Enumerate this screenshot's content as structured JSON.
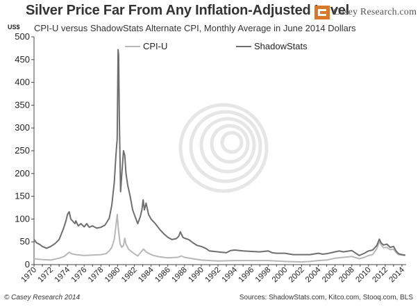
{
  "header": {
    "title": "Silver Price Far From Any Inflation-Adjusted Level",
    "subtitle": "CPI-U versus ShadowStats Alternate CPI, Monthly Average in June 2014 Dollars",
    "unit_label": "US$",
    "logo_text": "Casey Research.com"
  },
  "footer": {
    "copyright": "© Casey Research 2014",
    "sources": "Sources: ShadowStats.com, Kitco.com, Stooq.com, BLS"
  },
  "colors": {
    "cpi_u": "#b7b7b7",
    "shadowstats": "#6e6e6e",
    "axis": "#444444",
    "grid": "#dcdcdc",
    "logo_orange": "#d9772a"
  },
  "chart_data": {
    "type": "line",
    "title": "Silver Price Far From Any Inflation-Adjusted Level",
    "subtitle": "CPI-U versus ShadowStats Alternate CPI, Monthly Average in June 2014 Dollars",
    "ylabel": "US$",
    "xlabel": "",
    "xlim": [
      1970,
      2014.5
    ],
    "ylim": [
      0,
      500
    ],
    "yticks": [
      0,
      50,
      100,
      150,
      200,
      250,
      300,
      350,
      400,
      450,
      500
    ],
    "xticks": [
      "1970",
      "1972",
      "1974",
      "1976",
      "1978",
      "1980",
      "1982",
      "1984",
      "1986",
      "1988",
      "1990",
      "1992",
      "1994",
      "1996",
      "1998",
      "2000",
      "2002",
      "2004",
      "2006",
      "2008",
      "2010",
      "2012",
      "2014"
    ],
    "grid": false,
    "legend": "top-center",
    "series": [
      {
        "name": "CPI-U",
        "points": [
          [
            1970.0,
            13
          ],
          [
            1971.0,
            11
          ],
          [
            1972.0,
            10
          ],
          [
            1973.0,
            14
          ],
          [
            1973.6,
            18
          ],
          [
            1974.0,
            24
          ],
          [
            1974.2,
            27
          ],
          [
            1974.5,
            24
          ],
          [
            1975.0,
            22
          ],
          [
            1975.5,
            21
          ],
          [
            1976.0,
            20
          ],
          [
            1977.0,
            21
          ],
          [
            1978.0,
            22
          ],
          [
            1978.6,
            24
          ],
          [
            1979.0,
            30
          ],
          [
            1979.3,
            38
          ],
          [
            1979.6,
            55
          ],
          [
            1979.8,
            85
          ],
          [
            1979.95,
            110
          ],
          [
            1980.1,
            75
          ],
          [
            1980.3,
            45
          ],
          [
            1980.5,
            38
          ],
          [
            1980.7,
            42
          ],
          [
            1980.85,
            58
          ],
          [
            1981.0,
            45
          ],
          [
            1981.3,
            34
          ],
          [
            1981.7,
            28
          ],
          [
            1982.0,
            24
          ],
          [
            1982.4,
            19
          ],
          [
            1982.8,
            28
          ],
          [
            1983.1,
            34
          ],
          [
            1983.4,
            28
          ],
          [
            1983.8,
            24
          ],
          [
            1984.3,
            20
          ],
          [
            1985.0,
            17
          ],
          [
            1986.0,
            15
          ],
          [
            1987.2,
            16
          ],
          [
            1987.6,
            19
          ],
          [
            1988.0,
            16
          ],
          [
            1989.0,
            13
          ],
          [
            1990.0,
            10
          ],
          [
            1992.0,
            8
          ],
          [
            1994.0,
            9
          ],
          [
            1996.0,
            9
          ],
          [
            1998.0,
            9
          ],
          [
            1999.0,
            8
          ],
          [
            2000.0,
            7
          ],
          [
            2002.0,
            6
          ],
          [
            2003.0,
            7
          ],
          [
            2004.0,
            9
          ],
          [
            2005.0,
            10
          ],
          [
            2006.0,
            14
          ],
          [
            2007.0,
            16
          ],
          [
            2008.0,
            18
          ],
          [
            2008.9,
            13
          ],
          [
            2009.5,
            16
          ],
          [
            2010.0,
            20
          ],
          [
            2010.5,
            22
          ],
          [
            2011.0,
            35
          ],
          [
            2011.3,
            50
          ],
          [
            2011.5,
            44
          ],
          [
            2011.8,
            37
          ],
          [
            2012.2,
            38
          ],
          [
            2012.6,
            33
          ],
          [
            2013.0,
            34
          ],
          [
            2013.3,
            27
          ],
          [
            2013.6,
            22
          ],
          [
            2014.0,
            21
          ],
          [
            2014.4,
            20
          ]
        ]
      },
      {
        "name": "ShadowStats",
        "points": [
          [
            1970.0,
            55
          ],
          [
            1970.3,
            48
          ],
          [
            1970.7,
            44
          ],
          [
            1971.0,
            40
          ],
          [
            1971.5,
            36
          ],
          [
            1972.0,
            40
          ],
          [
            1972.5,
            46
          ],
          [
            1973.0,
            55
          ],
          [
            1973.5,
            78
          ],
          [
            1973.8,
            95
          ],
          [
            1974.0,
            110
          ],
          [
            1974.2,
            116
          ],
          [
            1974.4,
            100
          ],
          [
            1974.6,
            96
          ],
          [
            1974.9,
            90
          ],
          [
            1975.0,
            96
          ],
          [
            1975.3,
            85
          ],
          [
            1975.6,
            90
          ],
          [
            1976.0,
            83
          ],
          [
            1976.3,
            90
          ],
          [
            1976.6,
            82
          ],
          [
            1977.0,
            85
          ],
          [
            1977.5,
            80
          ],
          [
            1978.0,
            82
          ],
          [
            1978.5,
            87
          ],
          [
            1979.0,
            102
          ],
          [
            1979.3,
            130
          ],
          [
            1979.6,
            180
          ],
          [
            1979.8,
            240
          ],
          [
            1979.95,
            275
          ],
          [
            1980.05,
            472
          ],
          [
            1980.12,
            460
          ],
          [
            1980.2,
            320
          ],
          [
            1980.35,
            160
          ],
          [
            1980.5,
            200
          ],
          [
            1980.7,
            250
          ],
          [
            1980.85,
            240
          ],
          [
            1981.0,
            200
          ],
          [
            1981.2,
            175
          ],
          [
            1981.5,
            150
          ],
          [
            1981.8,
            120
          ],
          [
            1982.0,
            110
          ],
          [
            1982.4,
            90
          ],
          [
            1982.7,
            105
          ],
          [
            1982.9,
            120
          ],
          [
            1983.05,
            142
          ],
          [
            1983.2,
            120
          ],
          [
            1983.4,
            135
          ],
          [
            1983.7,
            110
          ],
          [
            1984.0,
            100
          ],
          [
            1984.5,
            90
          ],
          [
            1985.0,
            78
          ],
          [
            1985.5,
            68
          ],
          [
            1986.0,
            60
          ],
          [
            1986.5,
            55
          ],
          [
            1987.0,
            57
          ],
          [
            1987.3,
            62
          ],
          [
            1987.5,
            72
          ],
          [
            1987.8,
            60
          ],
          [
            1988.0,
            58
          ],
          [
            1988.5,
            55
          ],
          [
            1989.0,
            48
          ],
          [
            1989.5,
            42
          ],
          [
            1990.0,
            40
          ],
          [
            1990.5,
            36
          ],
          [
            1991.0,
            30
          ],
          [
            1992.0,
            28
          ],
          [
            1993.0,
            26
          ],
          [
            1993.5,
            31
          ],
          [
            1994.0,
            32
          ],
          [
            1995.0,
            30
          ],
          [
            1996.0,
            29
          ],
          [
            1997.0,
            28
          ],
          [
            1998.0,
            30
          ],
          [
            1998.5,
            26
          ],
          [
            1999.0,
            25
          ],
          [
            2000.0,
            25
          ],
          [
            2001.0,
            22
          ],
          [
            2002.0,
            22
          ],
          [
            2003.0,
            22
          ],
          [
            2004.0,
            25
          ],
          [
            2004.5,
            23
          ],
          [
            2005.0,
            24
          ],
          [
            2006.0,
            28
          ],
          [
            2006.5,
            30
          ],
          [
            2007.0,
            28
          ],
          [
            2008.0,
            31
          ],
          [
            2008.9,
            20
          ],
          [
            2009.5,
            25
          ],
          [
            2010.0,
            30
          ],
          [
            2010.5,
            32
          ],
          [
            2011.0,
            42
          ],
          [
            2011.3,
            56
          ],
          [
            2011.5,
            48
          ],
          [
            2011.8,
            43
          ],
          [
            2012.2,
            45
          ],
          [
            2012.6,
            38
          ],
          [
            2013.0,
            40
          ],
          [
            2013.3,
            30
          ],
          [
            2013.6,
            24
          ],
          [
            2014.0,
            22
          ],
          [
            2014.4,
            21
          ]
        ]
      }
    ]
  }
}
